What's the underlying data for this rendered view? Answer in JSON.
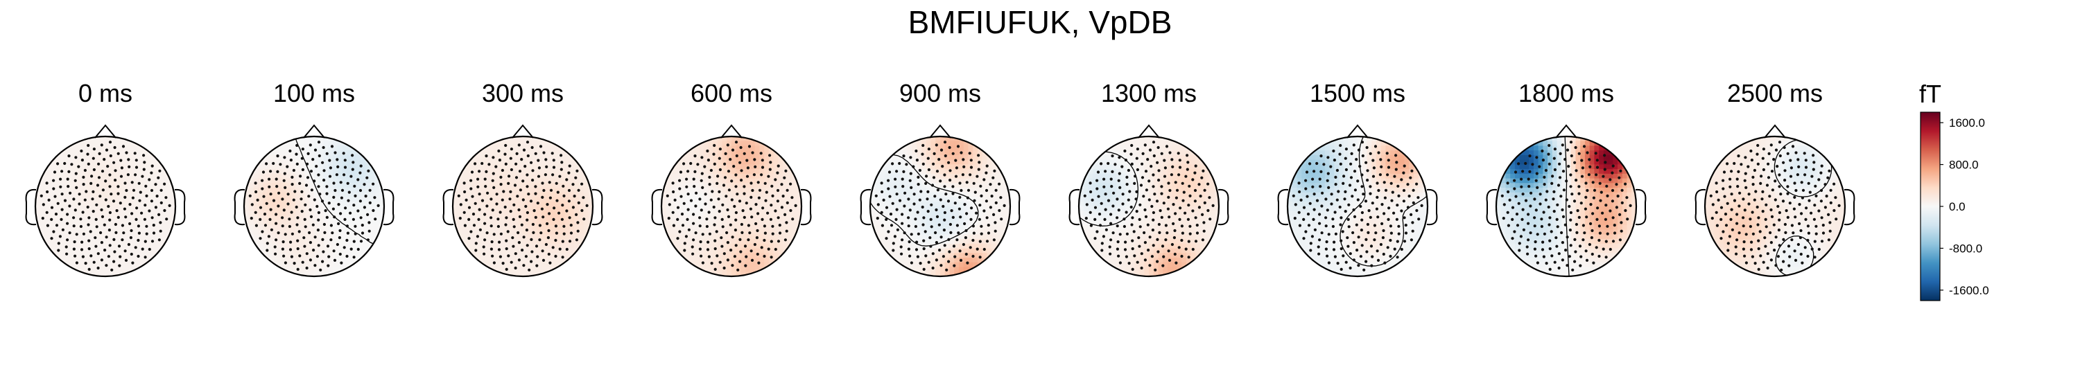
{
  "figure": {
    "title": "BMFIUFUK, VpDB"
  },
  "chart_data": {
    "type": "heatmap",
    "subtype": "topomap-series",
    "title": "BMFIUFUK, VpDB",
    "time_unit": "ms",
    "panels": [
      {
        "label": "0 ms",
        "time": 0,
        "sources": [
          {
            "u": 0.0,
            "v": -0.3,
            "value": 80
          }
        ],
        "base": 60
      },
      {
        "label": "100 ms",
        "time": 100,
        "sources": [
          {
            "u": -0.55,
            "v": -0.1,
            "value": 320
          },
          {
            "u": 0.55,
            "v": -0.55,
            "value": -320
          },
          {
            "u": -0.2,
            "v": 0.6,
            "value": 120
          }
        ],
        "base": 0
      },
      {
        "label": "300 ms",
        "time": 300,
        "sources": [
          {
            "u": 0.45,
            "v": 0.1,
            "value": 280
          },
          {
            "u": -0.3,
            "v": -0.2,
            "value": 80
          }
        ],
        "base": 120
      },
      {
        "label": "600 ms",
        "time": 600,
        "sources": [
          {
            "u": 0.2,
            "v": -0.75,
            "value": 450
          },
          {
            "u": -0.55,
            "v": -0.05,
            "value": -150
          },
          {
            "u": 0.3,
            "v": 0.85,
            "value": 350
          }
        ],
        "base": 150
      },
      {
        "label": "900 ms",
        "time": 900,
        "sources": [
          {
            "u": 0.2,
            "v": -0.85,
            "value": 550
          },
          {
            "u": 0.05,
            "v": 0.2,
            "value": -300
          },
          {
            "u": 0.4,
            "v": 0.95,
            "value": 700
          },
          {
            "u": -0.6,
            "v": -0.3,
            "value": -200
          }
        ],
        "base": 60
      },
      {
        "label": "1300 ms",
        "time": 1300,
        "sources": [
          {
            "u": -0.65,
            "v": -0.25,
            "value": -380
          },
          {
            "u": 0.55,
            "v": -0.35,
            "value": 300
          },
          {
            "u": 0.35,
            "v": 0.9,
            "value": 550
          }
        ],
        "base": 80
      },
      {
        "label": "1500 ms",
        "time": 1500,
        "sources": [
          {
            "u": -0.65,
            "v": -0.5,
            "value": -600
          },
          {
            "u": 0.6,
            "v": -0.65,
            "value": 750
          },
          {
            "u": 0.2,
            "v": 0.4,
            "value": 250
          }
        ],
        "base": -80
      },
      {
        "label": "1800 ms",
        "time": 1800,
        "sources": [
          {
            "u": -0.6,
            "v": -0.65,
            "value": -1600
          },
          {
            "u": 0.6,
            "v": -0.7,
            "value": 1700
          },
          {
            "u": -0.45,
            "v": 0.25,
            "value": -380
          },
          {
            "u": 0.55,
            "v": 0.2,
            "value": 650
          }
        ],
        "base": 0
      },
      {
        "label": "2500 ms",
        "time": 2500,
        "sources": [
          {
            "u": 0.4,
            "v": -0.55,
            "value": -380
          },
          {
            "u": -0.45,
            "v": 0.3,
            "value": 300
          },
          {
            "u": 0.25,
            "v": 0.7,
            "value": -250
          }
        ],
        "base": 150
      }
    ],
    "colorbar": {
      "unit": "fT",
      "range": [
        -1800,
        1800
      ],
      "ticks": [
        {
          "value": 1600,
          "label": "1600.0"
        },
        {
          "value": 800,
          "label": "800.0"
        },
        {
          "value": 0,
          "label": "0.0"
        },
        {
          "value": -800,
          "label": "-800.0"
        },
        {
          "value": -1600,
          "label": "-1600.0"
        }
      ],
      "colormap": "RdBu_r",
      "colors": [
        "#053061",
        "#2166ac",
        "#4393c3",
        "#92c5de",
        "#d1e5f0",
        "#f7f7f7",
        "#fddbc7",
        "#f4a582",
        "#d6604d",
        "#b2182b",
        "#67001f"
      ]
    },
    "contour_level": 0,
    "sensors": "dots"
  }
}
